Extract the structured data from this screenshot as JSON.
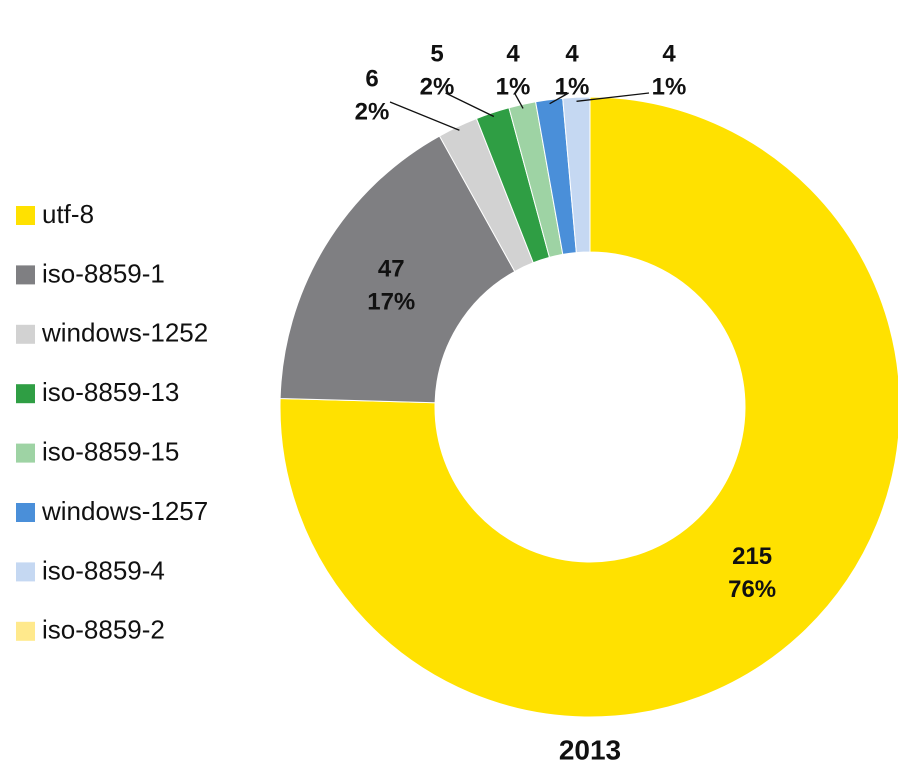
{
  "chart_data": {
    "type": "donut",
    "title": "2013",
    "categories": [
      "utf-8",
      "iso-8859-1",
      "windows-1252",
      "iso-8859-13",
      "iso-8859-15",
      "windows-1257",
      "iso-8859-4",
      "iso-8859-2"
    ],
    "values": [
      215,
      47,
      6,
      5,
      4,
      4,
      4,
      0
    ],
    "percent_labels": [
      "76%",
      "17%",
      "2%",
      "2%",
      "1%",
      "1%",
      "1%",
      null
    ],
    "colors": [
      "#ffe100",
      "#7f7f82",
      "#d2d2d2",
      "#2f9e44",
      "#9ed3a4",
      "#4a8fd9",
      "#c5d8f2",
      "#ffe98c"
    ],
    "legend": "left"
  }
}
